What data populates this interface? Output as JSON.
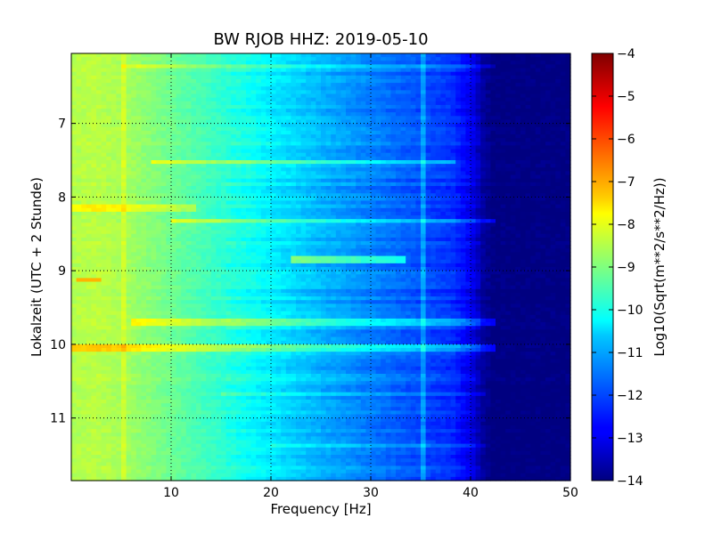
{
  "chart_data": {
    "type": "heatmap",
    "title": "BW RJOB HHZ: 2019-05-10",
    "xlabel": "Frequency [Hz]",
    "ylabel": "Lokalzeit (UTC + 2 Stunde)",
    "xlim": [
      0,
      50
    ],
    "ylim": [
      11.85,
      6.05
    ],
    "y_inverted": true,
    "xticks": [
      10,
      20,
      30,
      40,
      50
    ],
    "yticks": [
      7,
      8,
      9,
      10,
      11
    ],
    "grid": true,
    "colorbar": {
      "label": "Log10(Sqrt(m**2/s**2/Hz))",
      "range": [
        -14,
        -4
      ],
      "ticks": [
        -4,
        -5,
        -6,
        -7,
        -8,
        -9,
        -10,
        -11,
        -12,
        -13,
        -14
      ],
      "colormap": "jet"
    },
    "frequency_profile": {
      "freq_hz": [
        0,
        2,
        5,
        10,
        15,
        20,
        25,
        30,
        35,
        38,
        40,
        41,
        42,
        50
      ],
      "level": [
        -8.5,
        -8.4,
        -8.6,
        -9.2,
        -9.8,
        -10.4,
        -11.0,
        -11.5,
        -12.0,
        -12.3,
        -13.0,
        -13.7,
        -14.0,
        -14.0
      ]
    },
    "horizontal_bands": [
      {
        "time": 6.2,
        "f_from": 5,
        "f_to": 42,
        "delta": 0.6
      },
      {
        "time": 7.5,
        "f_from": 8,
        "f_to": 38,
        "delta": 1.0
      },
      {
        "time": 8.12,
        "f_from": 0,
        "f_to": 12,
        "delta": 0.8
      },
      {
        "time": 8.3,
        "f_from": 10,
        "f_to": 42,
        "delta": 1.2
      },
      {
        "time": 8.83,
        "f_from": 22,
        "f_to": 33,
        "delta": 1.6
      },
      {
        "time": 9.67,
        "f_from": 6,
        "f_to": 42,
        "delta": 1.0
      },
      {
        "time": 10.02,
        "f_from": 0,
        "f_to": 42,
        "delta": 1.2
      },
      {
        "time": 10.65,
        "f_from": 15,
        "f_to": 41,
        "delta": 0.6
      },
      {
        "time": 11.35,
        "f_from": 20,
        "f_to": 41,
        "delta": 0.5
      }
    ],
    "hotspots": [
      {
        "time": 9.1,
        "f_from": 0.5,
        "f_to": 2.5,
        "value": -7.0
      }
    ],
    "tones": [
      {
        "freq": 5,
        "delta": 0.4
      },
      {
        "freq": 35,
        "delta": 0.8
      }
    ]
  }
}
